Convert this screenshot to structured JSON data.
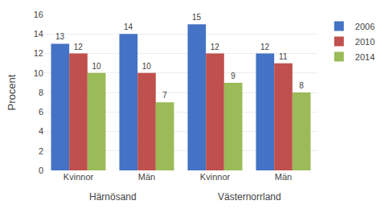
{
  "chart_data": {
    "type": "bar",
    "categories": [
      "Kvinnor",
      "Män",
      "Kvinnor",
      "Män"
    ],
    "series": [
      {
        "name": "2006",
        "color": "#4472C4",
        "values": [
          13,
          14,
          15,
          12
        ]
      },
      {
        "name": "2010",
        "color": "#C0504D",
        "values": [
          12,
          10,
          12,
          11
        ]
      },
      {
        "name": "2014",
        "color": "#9BBB59",
        "values": [
          10,
          7,
          9,
          8
        ]
      }
    ],
    "y_label": "Procent",
    "annotations": [
      "Härnösand",
      "Västernorrland"
    ],
    "ylim": [
      0,
      16
    ],
    "yticks": [
      0,
      2,
      4,
      6,
      8,
      10,
      12,
      14,
      16
    ],
    "grid": true,
    "legend": "upper right",
    "data_labels": true
  }
}
